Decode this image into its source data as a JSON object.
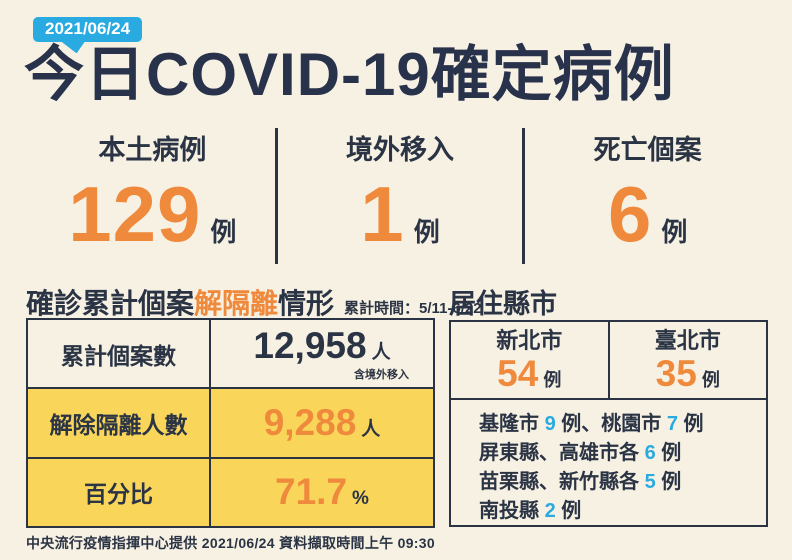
{
  "page": {
    "date_badge": "2021/06/24",
    "title": "今日COVID-19確定病例",
    "footer": "中央流行疫情指揮中心提供 2021/06/24  資料擷取時間上午 09:30"
  },
  "colors": {
    "background": "#F7F1E4",
    "navy": "#2B3444",
    "orange": "#EF8A3D",
    "yellow": "#F9D65A",
    "cyan": "#29ABE2",
    "badge_blue": "#29ABE2"
  },
  "daily_stats": [
    {
      "label": "本土病例",
      "value": "129",
      "unit": "例"
    },
    {
      "label": "境外移入",
      "value": "1",
      "unit": "例"
    },
    {
      "label": "死亡個案",
      "value": "6",
      "unit": "例"
    }
  ],
  "isolation": {
    "title_prefix": "確診累計個案",
    "title_highlight": "解隔離",
    "title_suffix": "情形",
    "period": "累計時間：5/11-6/22",
    "rows": [
      {
        "label": "累計個案數",
        "value": "12,958",
        "unit": "人",
        "note": "含境外移入"
      },
      {
        "label": "解除隔離人數",
        "value": "9,288",
        "unit": "人"
      },
      {
        "label": "百分比",
        "value": "71.7",
        "unit": "%"
      }
    ]
  },
  "residence": {
    "title": "居住縣市",
    "top_cities": [
      {
        "name": "新北市",
        "value": "54",
        "unit": "例"
      },
      {
        "name": "臺北市",
        "value": "35",
        "unit": "例"
      }
    ],
    "other_lines": [
      {
        "s0": "基隆市 ",
        "n0": "9",
        "s1": " 例、桃園市 ",
        "n1": "7",
        "s2": " 例"
      },
      {
        "s0": "屏東縣、高雄市各 ",
        "n0": "6",
        "s1": " 例"
      },
      {
        "s0": "苗栗縣、新竹縣各 ",
        "n0": "5",
        "s1": " 例"
      },
      {
        "s0": "南投縣 ",
        "n0": "2",
        "s1": " 例"
      }
    ]
  }
}
